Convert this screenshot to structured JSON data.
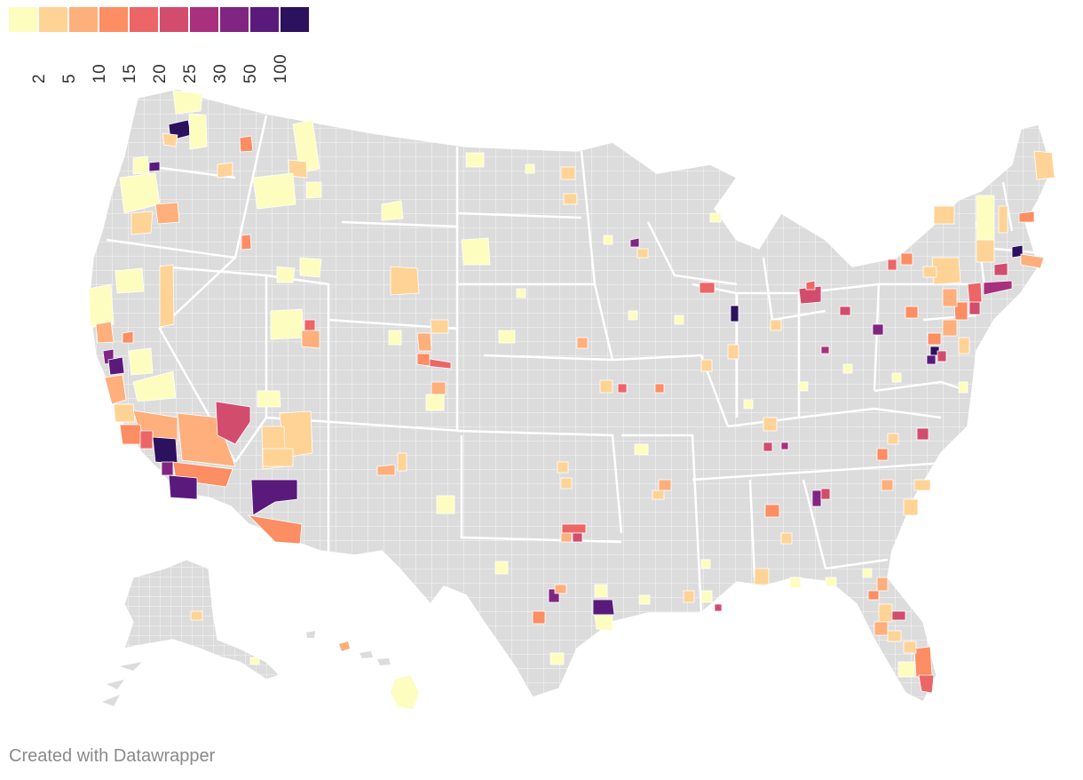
{
  "legend": {
    "colors": [
      "#fcfdbf",
      "#fed395",
      "#feaf7b",
      "#fd8d62",
      "#ec6567",
      "#d24c6e",
      "#a8307d",
      "#802582",
      "#5a1a7c",
      "#2c115f"
    ],
    "labels": [
      "2",
      "5",
      "10",
      "15",
      "20",
      "25",
      "30",
      "50",
      "100"
    ]
  },
  "map": {
    "base_color": "#dcdcdc",
    "border_color": "#ffffff",
    "regions": [
      "contiguous-us",
      "alaska",
      "hawaii"
    ]
  },
  "footer": {
    "credit": "Created with Datawrapper"
  }
}
